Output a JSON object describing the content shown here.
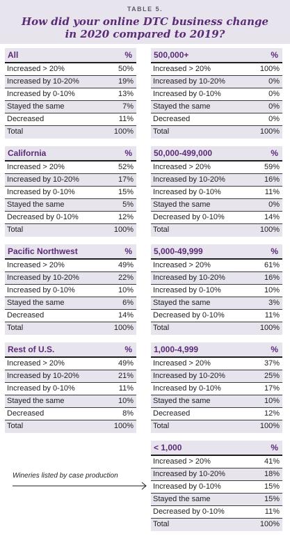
{
  "header": {
    "table_label": "TABLE 5.",
    "title_line1": "How did your online DTC business change",
    "title_line2": "in 2020 compared to 2019?"
  },
  "pct_label": "%",
  "tables": [
    {
      "name": "All",
      "rows": [
        [
          "Increased > 20%",
          "50%"
        ],
        [
          "Increased by 10-20%",
          "19%"
        ],
        [
          "Increased by 0-10%",
          "13%"
        ],
        [
          "Stayed the same",
          "7%"
        ],
        [
          "Decreased",
          "11%"
        ],
        [
          "Total",
          "100%"
        ]
      ]
    },
    {
      "name": "California",
      "rows": [
        [
          "Increased > 20%",
          "52%"
        ],
        [
          "Increased by 10-20%",
          "17%"
        ],
        [
          "Increased by 0-10%",
          "15%"
        ],
        [
          "Stayed the same",
          "5%"
        ],
        [
          "Decreased by 0-10%",
          "12%"
        ],
        [
          "Total",
          "100%"
        ]
      ]
    },
    {
      "name": "Pacific Northwest",
      "rows": [
        [
          "Increased > 20%",
          "49%"
        ],
        [
          "Increased by 10-20%",
          "22%"
        ],
        [
          "Increased by 0-10%",
          "10%"
        ],
        [
          "Stayed the same",
          "6%"
        ],
        [
          "Decreased",
          "14%"
        ],
        [
          "Total",
          "100%"
        ]
      ]
    },
    {
      "name": "Rest of U.S.",
      "rows": [
        [
          "Increased > 20%",
          "49%"
        ],
        [
          "Increased by 10-20%",
          "21%"
        ],
        [
          "Increased by 0-10%",
          "11%"
        ],
        [
          "Stayed the same",
          "10%"
        ],
        [
          "Decreased",
          "8%"
        ],
        [
          "Total",
          "100%"
        ]
      ]
    },
    {
      "name": "500,000+",
      "rows": [
        [
          "Increased > 20%",
          "100%"
        ],
        [
          "Increased by 10-20%",
          "0%"
        ],
        [
          "Increased by 0-10%",
          "0%"
        ],
        [
          "Stayed the same",
          "0%"
        ],
        [
          "Decreased",
          "0%"
        ],
        [
          "Total",
          "100%"
        ]
      ]
    },
    {
      "name": "50,000-499,000",
      "rows": [
        [
          "Increased > 20%",
          "59%"
        ],
        [
          "Increased by 10-20%",
          "16%"
        ],
        [
          "Increased by 0-10%",
          "11%"
        ],
        [
          "Stayed the same",
          "0%"
        ],
        [
          "Decreased by 0-10%",
          "14%"
        ],
        [
          "Total",
          "100%"
        ]
      ]
    },
    {
      "name": "5,000-49,999",
      "rows": [
        [
          "Increased > 20%",
          "61%"
        ],
        [
          "Increased by 10-20%",
          "16%"
        ],
        [
          "Increased by 0-10%",
          "10%"
        ],
        [
          "Stayed the same",
          "3%"
        ],
        [
          "Decreased by 0-10%",
          "11%"
        ],
        [
          "Total",
          "100%"
        ]
      ]
    },
    {
      "name": "1,000-4,999",
      "rows": [
        [
          "Increased > 20%",
          "37%"
        ],
        [
          "Increased by 10-20%",
          "25%"
        ],
        [
          "Increased by 0-10%",
          "17%"
        ],
        [
          "Stayed the same",
          "10%"
        ],
        [
          "Decreased",
          "12%"
        ],
        [
          "Total",
          "100%"
        ]
      ]
    },
    {
      "name": "< 1,000",
      "rows": [
        [
          "Increased > 20%",
          "41%"
        ],
        [
          "Increased by 10-20%",
          "18%"
        ],
        [
          "Increased by 0-10%",
          "15%"
        ],
        [
          "Stayed the same",
          "15%"
        ],
        [
          "Decreased by 0-10%",
          "11%"
        ],
        [
          "Total",
          "100%"
        ]
      ]
    }
  ],
  "note": "Wineries listed by case production"
}
